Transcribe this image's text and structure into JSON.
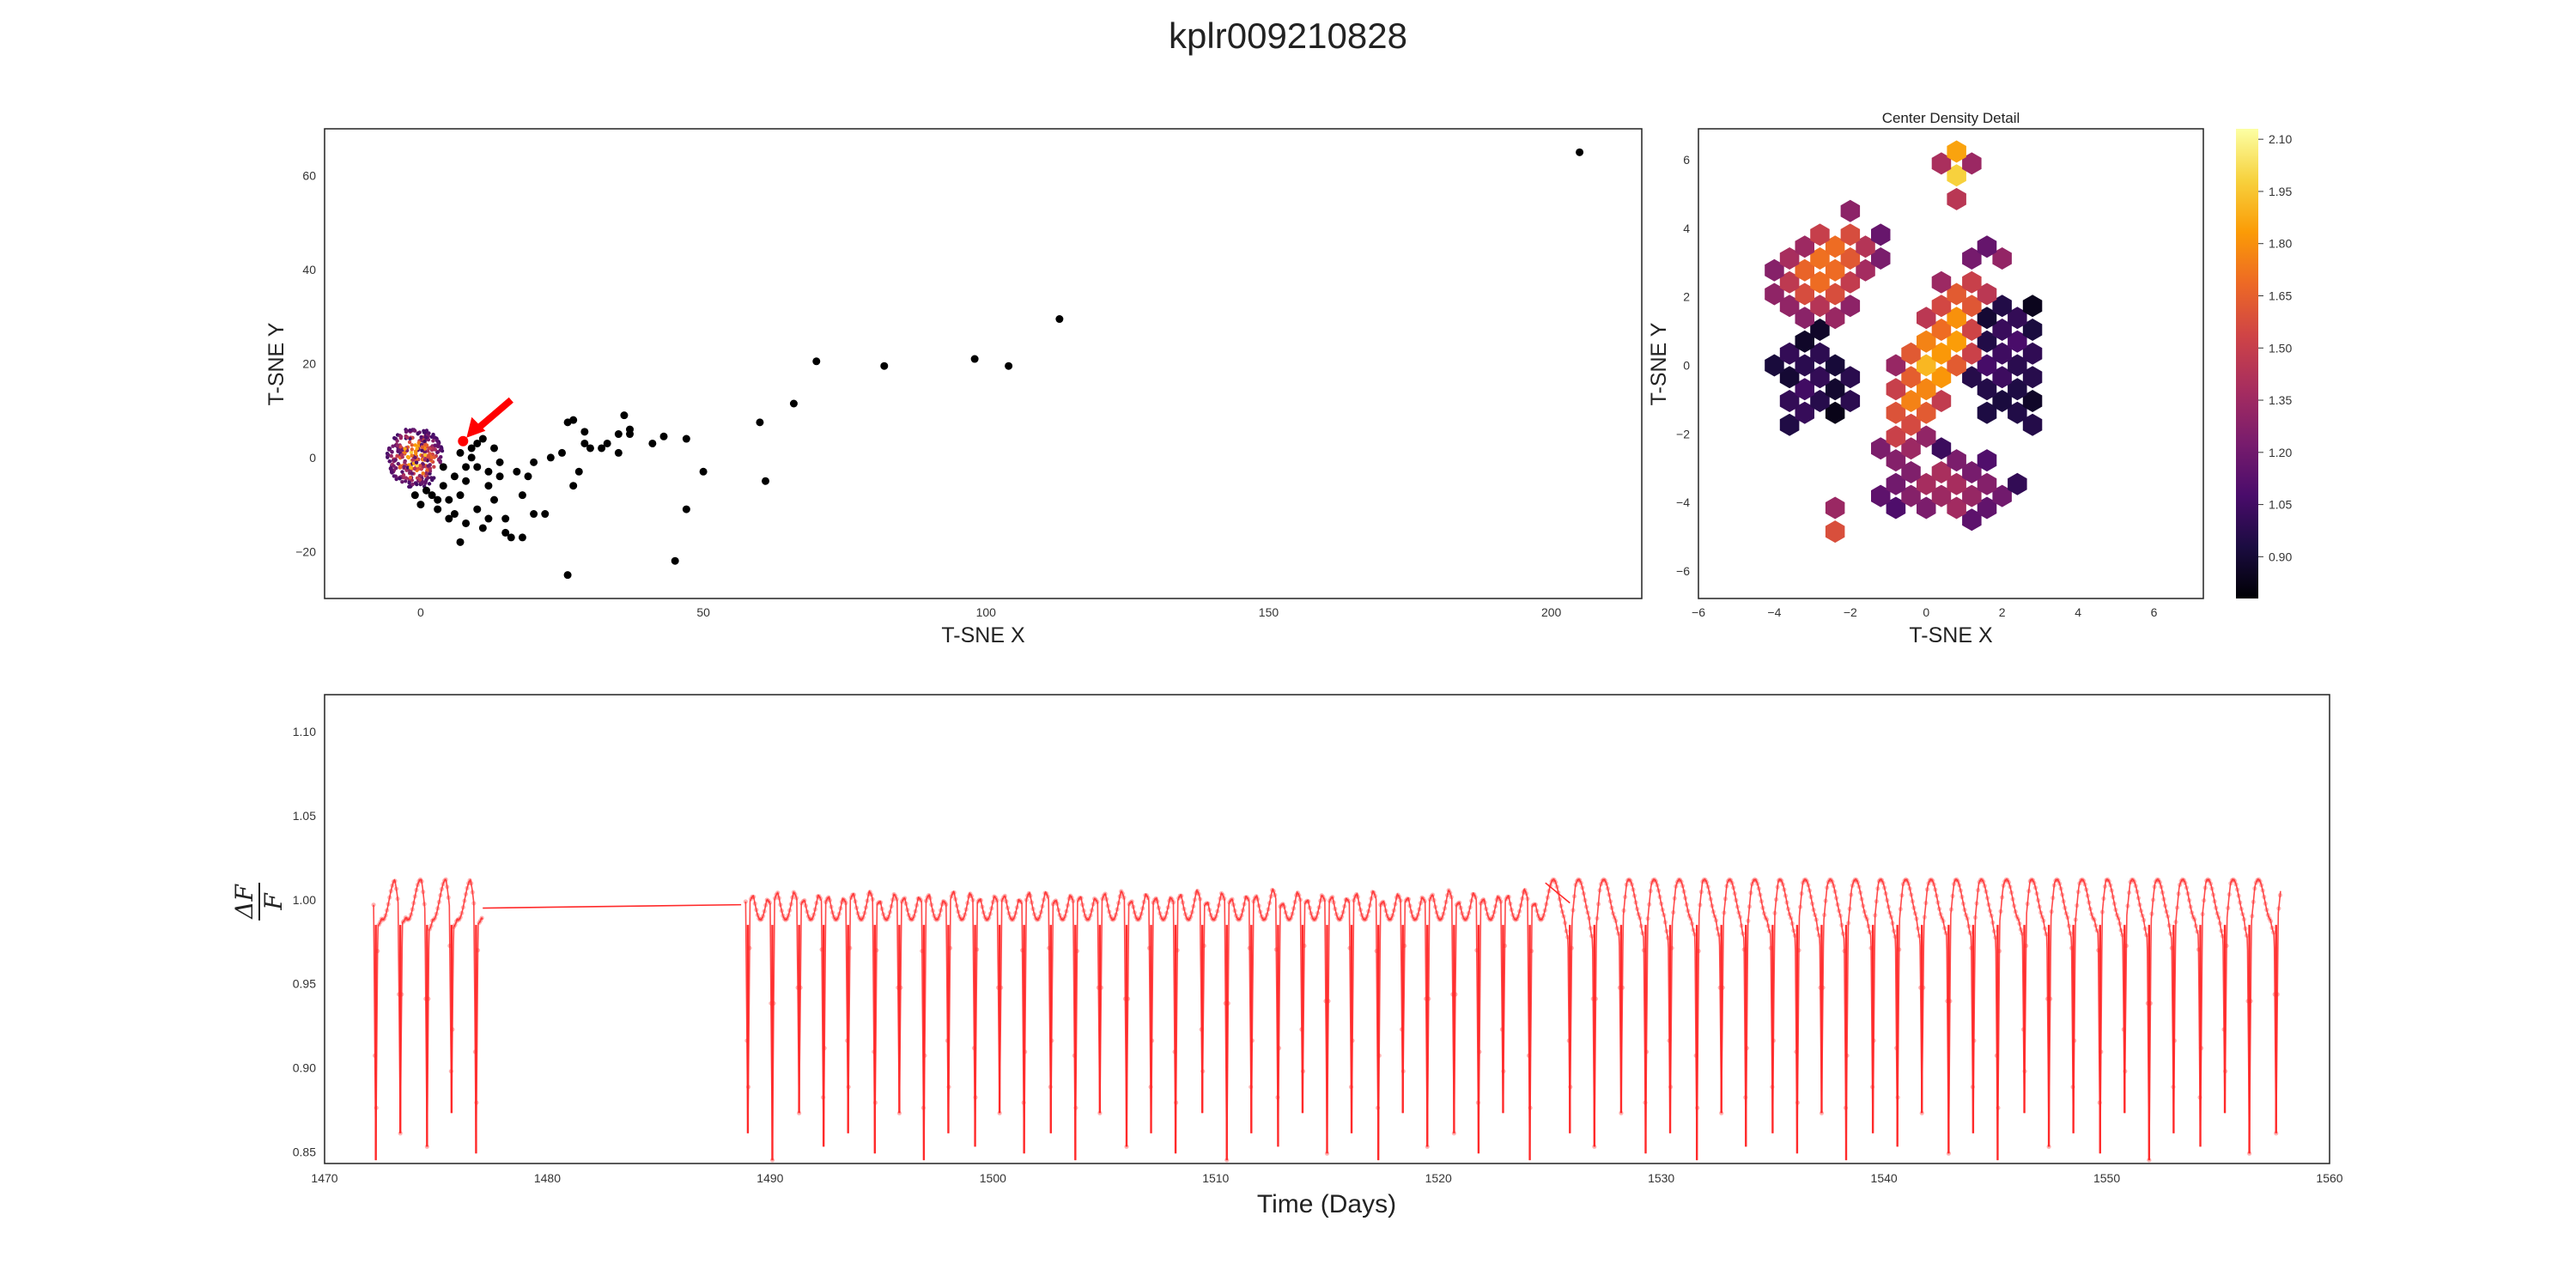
{
  "page": {
    "title": "kplr009210828"
  },
  "colors": {
    "lightcurve": "#ff2a2a",
    "scatter": "#000000",
    "arrow": "#ff0000",
    "inferno_stops": [
      "#000004",
      "#1b0c41",
      "#4a0c6b",
      "#781c6d",
      "#a52c60",
      "#cf4446",
      "#ed6925",
      "#fb9b06",
      "#f7d13d",
      "#fcffa4"
    ]
  },
  "chart_data": [
    {
      "id": "tsne-overview",
      "type": "scatter",
      "title": "",
      "xlabel": "T-SNE X",
      "ylabel": "T-SNE Y",
      "xlim": [
        -17,
        216
      ],
      "ylim": [
        -30,
        70
      ],
      "xticks": [
        0,
        50,
        100,
        150,
        200
      ],
      "yticks": [
        -20,
        0,
        20,
        40,
        60
      ],
      "grid": false,
      "dense_core": {
        "x_range": [
          -6,
          4
        ],
        "y_range": [
          -7,
          6
        ],
        "rendered_as": "hexbin"
      },
      "points": [
        [
          205,
          65
        ],
        [
          113,
          29.5
        ],
        [
          98,
          21
        ],
        [
          104,
          19.5
        ],
        [
          82,
          19.5
        ],
        [
          70,
          20.5
        ],
        [
          66,
          11.5
        ],
        [
          60,
          7.5
        ],
        [
          61,
          -5
        ],
        [
          50,
          -3
        ],
        [
          47,
          4
        ],
        [
          47,
          -11
        ],
        [
          45,
          -22
        ],
        [
          43,
          4.5
        ],
        [
          41,
          3
        ],
        [
          37,
          5
        ],
        [
          37,
          6
        ],
        [
          36,
          9
        ],
        [
          35,
          5
        ],
        [
          35,
          1
        ],
        [
          33,
          3
        ],
        [
          32,
          2
        ],
        [
          30,
          2
        ],
        [
          29,
          3
        ],
        [
          29,
          5.5
        ],
        [
          28,
          -3
        ],
        [
          27,
          -6
        ],
        [
          27,
          8
        ],
        [
          26,
          7.5
        ],
        [
          26,
          -25
        ],
        [
          25,
          1
        ],
        [
          23,
          0
        ],
        [
          22,
          -12
        ],
        [
          20,
          -12
        ],
        [
          20,
          -1
        ],
        [
          19,
          -4
        ],
        [
          18,
          -8
        ],
        [
          18,
          -17
        ],
        [
          17,
          -3
        ],
        [
          16,
          -17
        ],
        [
          15,
          -16
        ],
        [
          14,
          -4
        ],
        [
          12,
          -3
        ],
        [
          12,
          -6
        ],
        [
          11,
          -15
        ],
        [
          10,
          -2
        ],
        [
          10,
          3
        ],
        [
          10,
          -11
        ],
        [
          9,
          0
        ],
        [
          8,
          -5
        ],
        [
          8,
          -14
        ],
        [
          7,
          1
        ],
        [
          7,
          -8
        ],
        [
          7,
          -18
        ],
        [
          6,
          -4
        ],
        [
          6,
          -12
        ],
        [
          5,
          -9
        ],
        [
          5,
          -13
        ],
        [
          4,
          -2
        ],
        [
          4,
          -6
        ],
        [
          3,
          -9
        ],
        [
          3,
          -11
        ],
        [
          2,
          -8
        ],
        [
          1,
          -7
        ],
        [
          0,
          -10
        ],
        [
          -1,
          -8
        ],
        [
          14,
          -1
        ],
        [
          13,
          2
        ],
        [
          11,
          4
        ],
        [
          9,
          2
        ],
        [
          8,
          -2
        ],
        [
          15,
          -13
        ],
        [
          12,
          -13
        ],
        [
          13,
          -9
        ]
      ],
      "highlight": {
        "x": 7.5,
        "y": 3.5,
        "marker": "arrow"
      }
    },
    {
      "id": "tsne-center-density",
      "type": "heatmap",
      "title": "Center Density Detail",
      "xlabel": "T-SNE X",
      "ylabel": "T-SNE Y",
      "xlim": [
        -6,
        7.3
      ],
      "ylim": [
        -6.8,
        6.9
      ],
      "xticks": [
        -6,
        -4,
        -2,
        0,
        2,
        4,
        6
      ],
      "yticks": [
        -6,
        -4,
        -2,
        0,
        2,
        4,
        6
      ],
      "colorbar": {
        "min": 0.78,
        "max": 2.13,
        "ticks": [
          "0.90",
          "1.05",
          "1.20",
          "1.35",
          "1.50",
          "1.65",
          "1.80",
          "1.95",
          "2.10"
        ]
      },
      "hex_clusters": [
        {
          "comment": "upper-left lobe",
          "center": [
            -2.6,
            2.8
          ],
          "spread": [
            1.1,
            1.6
          ],
          "rot": -0.6,
          "peak": 1.75
        },
        {
          "comment": "central diagonal band",
          "center": [
            0.3,
            0.3
          ],
          "spread": [
            0.9,
            3.0
          ],
          "rot": -0.45,
          "peak": 1.85
        },
        {
          "comment": "top tip",
          "center": [
            0.8,
            5.8
          ],
          "spread": [
            0.35,
            0.9
          ],
          "rot": 0.0,
          "peak": 2.1
        },
        {
          "comment": "lower arm",
          "center": [
            0.6,
            -3.6
          ],
          "spread": [
            1.6,
            1.0
          ],
          "rot": 0.0,
          "peak": 1.45
        },
        {
          "comment": "lower-left spur",
          "center": [
            -2.5,
            -4.6
          ],
          "spread": [
            0.3,
            0.7
          ],
          "rot": 0.3,
          "peak": 1.75
        },
        {
          "comment": "right wing",
          "center": [
            2.2,
            0.2
          ],
          "spread": [
            1.0,
            1.8
          ],
          "rot": 0.1,
          "peak": 1.05
        },
        {
          "comment": "left scatter",
          "center": [
            -3.0,
            -0.5
          ],
          "spread": [
            1.0,
            1.4
          ],
          "rot": 0.0,
          "peak": 1.0
        }
      ]
    },
    {
      "id": "light-curve",
      "type": "line",
      "title": "",
      "xlabel": "Time (Days)",
      "ylabel": "ΔF/F",
      "xlim": [
        1470,
        1560
      ],
      "ylim": [
        0.843,
        1.122
      ],
      "xticks": [
        1470,
        1480,
        1490,
        1500,
        1510,
        1520,
        1530,
        1540,
        1550,
        1560
      ],
      "yticks": [
        "0.85",
        "0.90",
        "0.95",
        "1.00",
        "1.05",
        "1.10"
      ],
      "grid": false,
      "segments": [
        [
          1472.2,
          1477.1
        ],
        [
          1488.9,
          1557.8
        ]
      ],
      "gaps": [
        [
          1477.1,
          0.995,
          1488.7,
          0.997
        ],
        [
          1524.8,
          1.01,
          1525.9,
          0.998
        ]
      ],
      "period_days": 1.13,
      "baseline": 1.0,
      "eclipse_depths": [
        0.845,
        0.905
      ],
      "eclipse_times": [
        1472.3,
        1473.4,
        1474.6,
        1475.7,
        1476.8,
        1489.0,
        1490.1,
        1491.3,
        1492.4,
        1493.5,
        1494.7,
        1495.8,
        1496.9,
        1498.0,
        1499.2,
        1500.3,
        1501.4,
        1502.6,
        1503.7,
        1504.8,
        1506.0,
        1507.1,
        1508.2,
        1509.4,
        1510.5,
        1511.6,
        1512.8,
        1513.9,
        1515.0,
        1516.1,
        1517.3,
        1518.4,
        1519.5,
        1520.7,
        1521.8,
        1522.9,
        1524.1,
        1525.9,
        1527.0,
        1528.2,
        1529.3,
        1530.4,
        1531.6,
        1532.7,
        1533.8,
        1535.0,
        1536.1,
        1537.2,
        1538.3,
        1539.5,
        1540.6,
        1541.7,
        1542.9,
        1544.0,
        1545.1,
        1546.3,
        1547.4,
        1548.5,
        1549.7,
        1550.8,
        1551.9,
        1553.0,
        1554.2,
        1555.3,
        1556.4,
        1557.6
      ]
    }
  ]
}
